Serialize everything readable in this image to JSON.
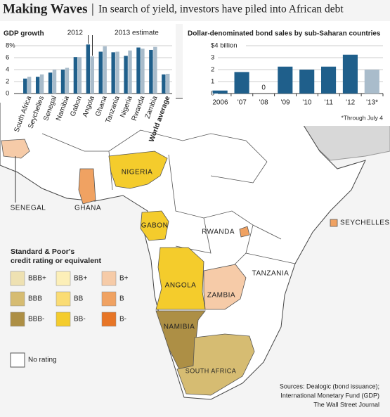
{
  "title": "Making Waves",
  "subtitle": "In search of yield, investors have piled into African debt",
  "chart_data": [
    {
      "type": "bar",
      "title": "GDP growth",
      "categories": [
        "South Africa",
        "Seychelles",
        "Senegal",
        "Namibia",
        "Gabon",
        "Angola",
        "Ghana",
        "Tanzania",
        "Nigeria",
        "Rwanda",
        "Zambia",
        "World average"
      ],
      "series": [
        {
          "name": "2012",
          "color": "#1f5f8b",
          "values": [
            2.5,
            2.8,
            3.5,
            4.0,
            6.1,
            8.2,
            7.0,
            6.9,
            6.3,
            7.7,
            7.3,
            3.2
          ]
        },
        {
          "name": "2013 estimate",
          "color": "#a9bccb",
          "values": [
            2.8,
            3.2,
            4.0,
            4.3,
            6.1,
            6.2,
            7.9,
            7.0,
            7.2,
            7.5,
            7.8,
            3.3
          ]
        }
      ],
      "ylim": [
        0,
        8
      ],
      "yticks": [
        0,
        2,
        4,
        6,
        {
          "value": 8,
          "label": "8%"
        }
      ],
      "grid": true
    },
    {
      "type": "bar",
      "title": "Dollar-denominated bond sales by sub-Saharan countries",
      "categories": [
        "2006",
        "'07",
        "'08",
        "'09",
        "'10",
        "'11",
        "'12",
        "'13*"
      ],
      "values": [
        0.25,
        1.8,
        0,
        2.25,
        2.0,
        2.25,
        3.25,
        2.0
      ],
      "colors": [
        "#1f5f8b",
        "#1f5f8b",
        "#1f5f8b",
        "#1f5f8b",
        "#1f5f8b",
        "#1f5f8b",
        "#1f5f8b",
        "#a9bccb"
      ],
      "ylim": [
        0,
        4
      ],
      "yticks": [
        0,
        1,
        2,
        3,
        {
          "value": 4,
          "label": "$4 billion"
        }
      ],
      "grid": true,
      "annotation": "*Through July 4"
    }
  ],
  "map": {
    "legend_title": [
      "Standard & Poor's",
      "credit rating or equivalent"
    ],
    "ratings": [
      {
        "label": "BBB+",
        "color": "#eee1b2"
      },
      {
        "label": "BBB",
        "color": "#d6bc72"
      },
      {
        "label": "BBB-",
        "color": "#ad8f45"
      },
      {
        "label": "BB+",
        "color": "#fcefb8"
      },
      {
        "label": "BB",
        "color": "#fadc74"
      },
      {
        "label": "BB-",
        "color": "#f4cc2c"
      },
      {
        "label": "B+",
        "color": "#f6cba8"
      },
      {
        "label": "B",
        "color": "#f0a262"
      },
      {
        "label": "B-",
        "color": "#e77526"
      }
    ],
    "no_rating": "No rating",
    "countries": [
      {
        "name": "SENEGAL",
        "rating": "B+"
      },
      {
        "name": "GHANA",
        "rating": "B"
      },
      {
        "name": "NIGERIA",
        "rating": "BB-"
      },
      {
        "name": "GABON",
        "rating": "BB-"
      },
      {
        "name": "ANGOLA",
        "rating": "BB-"
      },
      {
        "name": "ZAMBIA",
        "rating": "B+"
      },
      {
        "name": "NAMIBIA",
        "rating": "BBB-"
      },
      {
        "name": "SOUTH AFRICA",
        "rating": "BBB"
      },
      {
        "name": "RWANDA",
        "rating": "B"
      },
      {
        "name": "SEYCHELLES",
        "rating": "B"
      },
      {
        "name": "TANZANIA"
      }
    ]
  },
  "sources": [
    "Sources: Dealogic (bond issuance);",
    "International Monetary Fund (GDP)",
    "The Wall Street Journal"
  ]
}
